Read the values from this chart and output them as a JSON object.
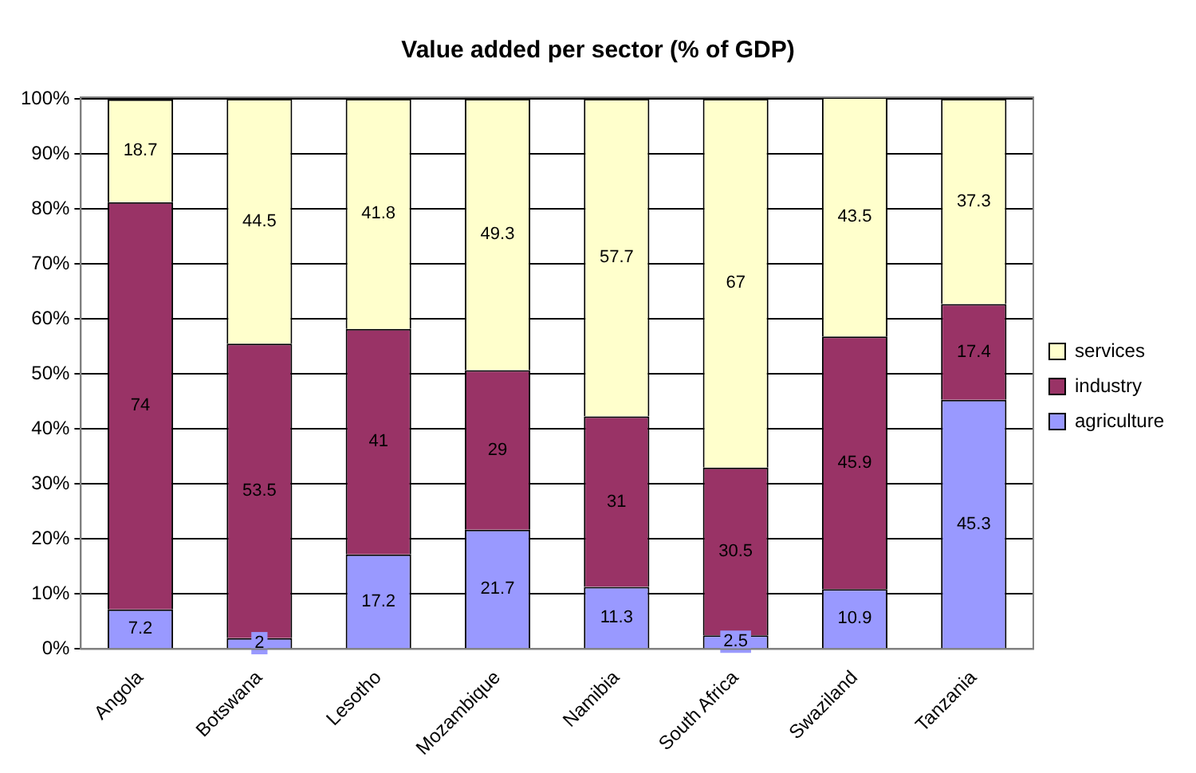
{
  "chart_data": {
    "type": "bar",
    "title": "Value added per sector (% of GDP)",
    "stacked": true,
    "categories": [
      "Angola",
      "Botswana",
      "Lesotho",
      "Mozambique",
      "Namibia",
      "South Africa",
      "Swaziland",
      "Tanzania"
    ],
    "series": [
      {
        "name": "agriculture",
        "color": "#9999ff",
        "values": [
          7.2,
          2,
          17.2,
          21.7,
          11.3,
          2.5,
          10.9,
          45.3
        ]
      },
      {
        "name": "industry",
        "color": "#993366",
        "values": [
          74,
          53.5,
          41,
          29,
          31,
          30.5,
          45.9,
          17.4
        ]
      },
      {
        "name": "services",
        "color": "#ffffcc",
        "values": [
          18.7,
          44.5,
          41.8,
          49.3,
          57.7,
          67,
          43.5,
          37.3
        ]
      }
    ],
    "ylim": [
      0,
      100.3
    ],
    "yticks": [
      {
        "value": 0,
        "label": "0%"
      },
      {
        "value": 10,
        "label": "10%"
      },
      {
        "value": 20,
        "label": "20%"
      },
      {
        "value": 30,
        "label": "30%"
      },
      {
        "value": 40,
        "label": "40%"
      },
      {
        "value": 50,
        "label": "50%"
      },
      {
        "value": 60,
        "label": "60%"
      },
      {
        "value": 70,
        "label": "70%"
      },
      {
        "value": 80,
        "label": "80%"
      },
      {
        "value": 90,
        "label": "90%"
      },
      {
        "value": 100,
        "label": "100%"
      }
    ],
    "grid": "y",
    "legend": "right",
    "data_labels": true
  }
}
